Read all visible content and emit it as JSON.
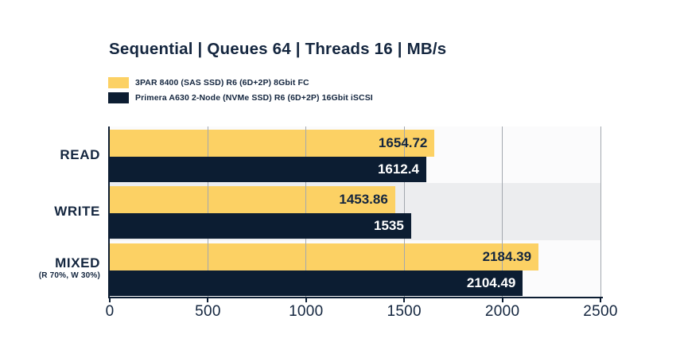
{
  "chart_data": {
    "type": "bar",
    "orientation": "horizontal",
    "title": "Sequential | Queues 64 | Threads 16 | MB/s",
    "categories": [
      "READ",
      "WRITE",
      "MIXED"
    ],
    "category_sublabels": [
      "",
      "",
      "(R 70%, W 30%)"
    ],
    "series": [
      {
        "name": "3PAR 8400 (SAS SSD) R6 (6D+2P) 8Gbit FC",
        "color": "#FCD164",
        "value_label_color": "#14263F",
        "values": [
          1654.72,
          1453.86,
          2184.39
        ]
      },
      {
        "name": "Primera A630 2-Node (NVMe SSD) R6 (6D+2P) 16Gbit iSCSI",
        "color": "#0C1D32",
        "value_label_color": "#FFFFFF",
        "values": [
          1612.4,
          1535,
          2104.49
        ]
      }
    ],
    "xlim": [
      0,
      2500
    ],
    "xticks": [
      0,
      500,
      1000,
      1500,
      2000,
      2500
    ],
    "grid": true,
    "legend_position": "top-left",
    "highlight_band_row": 1,
    "colors": {
      "grid": "#A3A8AF",
      "band_highlight": "#ECEDEF",
      "plot_bg": "#FBFBFC",
      "axis": "#0C1D32",
      "text": "#14263F"
    }
  }
}
